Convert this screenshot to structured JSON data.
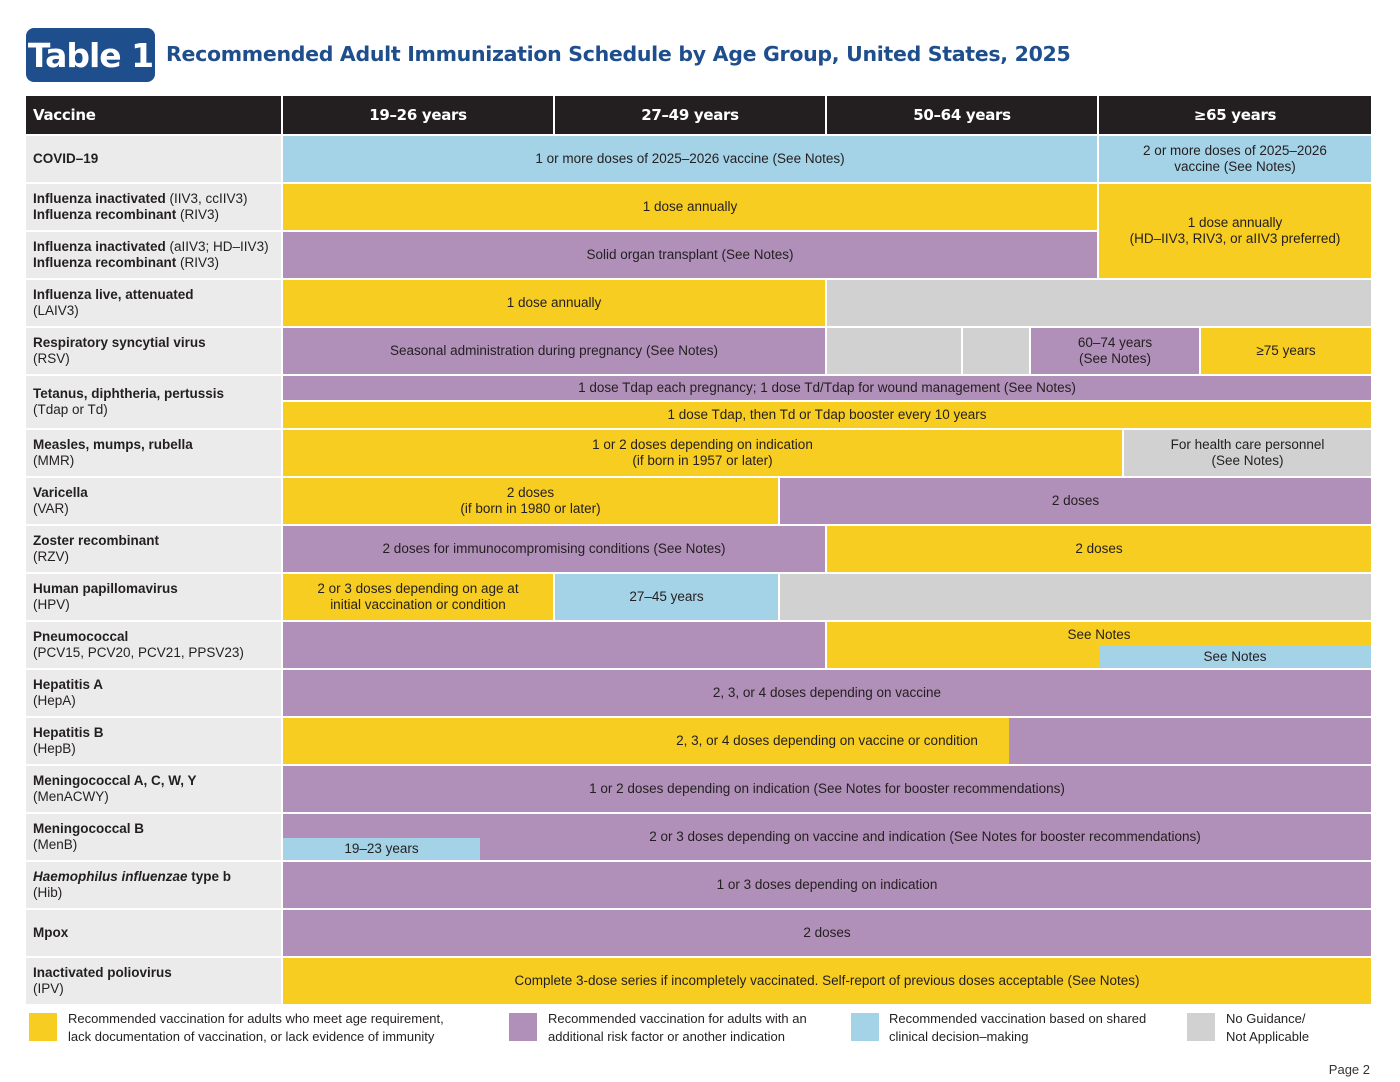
{
  "header": {
    "badge": "Table 1",
    "title": "Recommended Adult Immunization Schedule by Age Group, United States, 2025"
  },
  "columns": {
    "vaccine": "Vaccine",
    "age1": "19–26 years",
    "age2": "27–49 years",
    "age3": "50–64 years",
    "age4": "≥65 years"
  },
  "rows": {
    "covid": {
      "name": "COVID–19",
      "bar1": "1 or more doses of 2025–2026 vaccine (See Notes)",
      "bar2a": "2 or more doses of 2025–2026",
      "bar2b": "vaccine (See Notes)"
    },
    "flu1": {
      "name_b1": "Influenza inactivated",
      "name_r1": " (IIV3, ccIIV3)",
      "name_b2": "Influenza recombinant",
      "name_r2": " (RIV3)",
      "bar1": "1 dose annually"
    },
    "flu2": {
      "name_b1": "Influenza inactivated",
      "name_r1": " (aIIV3; HD–IIV3)",
      "name_b2": "Influenza recombinant",
      "name_r2": " (RIV3)",
      "bar1": "Solid organ transplant (See Notes)"
    },
    "flu65": {
      "line1": "1 dose annually",
      "line2": "(HD–IIV3, RIV3, or aIIV3 preferred)"
    },
    "laiv": {
      "name_b": "Influenza live, attenuated",
      "name_r": "(LAIV3)",
      "bar1": "1 dose annually"
    },
    "rsv": {
      "name_b": "Respiratory syncytial virus",
      "name_r": "(RSV)",
      "bar1": "Seasonal administration during pregnancy (See Notes)",
      "bar2a": "60–74 years",
      "bar2b": "(See Notes)",
      "bar3": "≥75 years"
    },
    "tdap": {
      "name_b": "Tetanus, diphtheria, pertussis",
      "name_r": "(Tdap or Td)",
      "bar1": "1 dose Tdap each pregnancy; 1 dose Td/Tdap for wound management (See Notes)",
      "bar2": "1 dose Tdap, then Td or Tdap booster every 10 years"
    },
    "mmr": {
      "name_b": "Measles, mumps, rubella",
      "name_r": "(MMR)",
      "bar1a": "1 or 2 doses depending on indication",
      "bar1b": "(if born in 1957 or later)",
      "bar2a": "For health care personnel",
      "bar2b": "(See Notes)"
    },
    "var": {
      "name_b": "Varicella",
      "name_r": "(VAR)",
      "bar1a": "2 doses",
      "bar1b": "(if born in 1980 or later)",
      "bar2": "2 doses"
    },
    "rzv": {
      "name_b": "Zoster recombinant",
      "name_r": "(RZV)",
      "bar1": "2 doses for immunocompromising conditions (See Notes)",
      "bar2": "2 doses"
    },
    "hpv": {
      "name_b": "Human papillomavirus",
      "name_r": "(HPV)",
      "bar1a": "2 or 3 doses depending on age at",
      "bar1b": "initial vaccination or condition",
      "bar2": "27–45 years"
    },
    "pneumo": {
      "name_b": "Pneumococcal",
      "name_r": "(PCV15, PCV20, PCV21, PPSV23)",
      "bar1": "See Notes",
      "bar2": "See Notes"
    },
    "hepa": {
      "name_b": "Hepatitis A",
      "name_r": "(HepA)",
      "bar1": "2, 3, or 4 doses depending on vaccine"
    },
    "hepb": {
      "name_b": "Hepatitis B",
      "name_r": "(HepB)",
      "bar1": "2, 3, or 4 doses depending on vaccine or condition"
    },
    "menacwy": {
      "name_b": "Meningococcal A, C, W, Y",
      "name_r": "(MenACWY)",
      "bar1": "1 or 2 doses depending on indication (See Notes for booster recommendations)"
    },
    "menb": {
      "name_b": "Meningococcal B",
      "name_r": "(MenB)",
      "bar1": "2 or 3 doses depending on vaccine and indication (See Notes for booster recommendations)",
      "bar2": "19–23 years"
    },
    "hib": {
      "name_i": "Haemophilus influenzae",
      "name_b": " type b",
      "name_r": "(Hib)",
      "bar1": "1 or 3 doses depending on indication"
    },
    "mpox": {
      "name_b": "Mpox",
      "bar1": "2 doses"
    },
    "ipv": {
      "name_b": "Inactivated poliovirus",
      "name_r": "(IPV)",
      "bar1": "Complete 3-dose series if incompletely vaccinated. Self-report of previous doses acceptable (See Notes)"
    }
  },
  "legend": {
    "yellow1": "Recommended vaccination for adults who meet age requirement,",
    "yellow2": "lack documentation of vaccination, or lack evidence of immunity",
    "purple1": "Recommended vaccination for adults with an",
    "purple2": "additional risk factor or another indication",
    "blue1": "Recommended vaccination based on shared",
    "blue2": "clinical decision–making",
    "gray1": "No Guidance/",
    "gray2": "Not Applicable"
  },
  "page": "Page 2",
  "colors": {
    "yellow": "#f8cd22",
    "purple": "#b08fb8",
    "blue": "#a4d2e6",
    "gray": "#d1d1d1",
    "navy": "#1f4e8c"
  }
}
